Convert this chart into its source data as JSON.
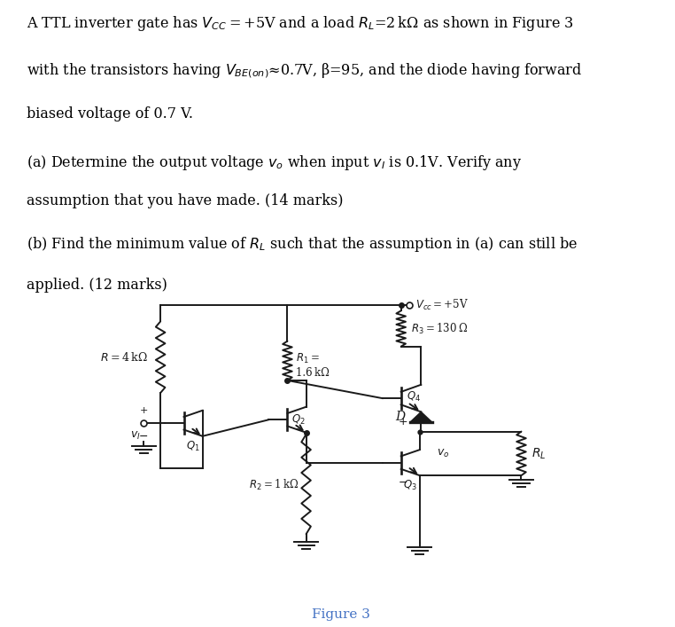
{
  "bg_color": "#ffffff",
  "text_color": "#000000",
  "cc": "#1a1a1a",
  "fig_caption_color": "#4472c4",
  "line1": "A TTL inverter gate has $V_{CC}$ = +5V and a load $R_L$=2 kΩ as shown in Figure 3",
  "line2": "with the transistors having $V_{BE(on)}$≈0.7V, β=95, and the diode having forward",
  "line3": "biased voltage of 0.7 V.",
  "line4a": "(a) Determine the output voltage $v_o$ when input $v_I$ is 0.1V. Verify any",
  "line4b": "assumption that you have made. (14 marks)",
  "line5a": "(b) Find the minimum value of $R_L$ such that the assumption in (a) can still be",
  "line5b": "applied. (12 marks)",
  "figure_caption": "Figure 3",
  "vcc_label": "$V_{cc}$ = +5V",
  "R_label": "$R$ = 4 kΩ",
  "R1_label1": "$R_1$ =",
  "R1_label2": "1.6 kΩ",
  "R2_label": "$R_2$ = 1 kΩ",
  "R3_label": "$R_3$ = 130 Ω",
  "RL_label": "$R_L$",
  "Q1_label": "$Q_1$",
  "Q2_label": "$Q_2$",
  "Q3_label": "$Q_3$",
  "Q4_label": "$Q_4$",
  "D_label": "D",
  "vo_label": "$v_o$",
  "vi_label": "$v_I$"
}
